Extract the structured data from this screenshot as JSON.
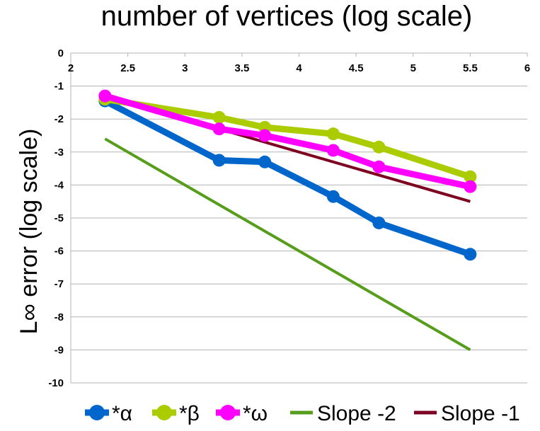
{
  "chart_data": {
    "type": "line",
    "title": "number of vertices (log scale)",
    "xlabel": "",
    "ylabel": "L∞ error (log scale)",
    "xlim": [
      2,
      6
    ],
    "ylim": [
      -10,
      0
    ],
    "x_ticks": [
      "2",
      "2.5",
      "3",
      "3.5",
      "4",
      "4.5",
      "5",
      "5.5",
      "6"
    ],
    "y_ticks": [
      "0",
      "-1",
      "-2",
      "-3",
      "-4",
      "-5",
      "-6",
      "-7",
      "-8",
      "-9",
      "-10"
    ],
    "grid": true,
    "legend_position": "bottom",
    "series": [
      {
        "name": "*α",
        "color": "#0066cc",
        "markers": true,
        "x": [
          2.3,
          3.3,
          3.7,
          4.3,
          4.7,
          5.5
        ],
        "y": [
          -1.45,
          -3.25,
          -3.3,
          -4.35,
          -5.15,
          -6.1
        ]
      },
      {
        "name": "*β",
        "color": "#aacc00",
        "markers": true,
        "x": [
          2.3,
          3.3,
          3.7,
          4.3,
          4.7,
          5.5
        ],
        "y": [
          -1.4,
          -1.95,
          -2.25,
          -2.45,
          -2.85,
          -3.75
        ]
      },
      {
        "name": "*ω",
        "color": "#ff00ff",
        "markers": true,
        "x": [
          2.3,
          3.3,
          3.7,
          4.3,
          4.7,
          5.5
        ],
        "y": [
          -1.3,
          -2.3,
          -2.5,
          -2.95,
          -3.45,
          -4.05
        ]
      },
      {
        "name": "Slope -2",
        "color": "#579d1c",
        "markers": false,
        "x": [
          2.3,
          5.5
        ],
        "y": [
          -2.6,
          -9.0
        ]
      },
      {
        "name": "Slope -1",
        "color": "#7e0021",
        "markers": false,
        "x": [
          2.3,
          5.5
        ],
        "y": [
          -1.3,
          -4.5
        ]
      }
    ]
  }
}
